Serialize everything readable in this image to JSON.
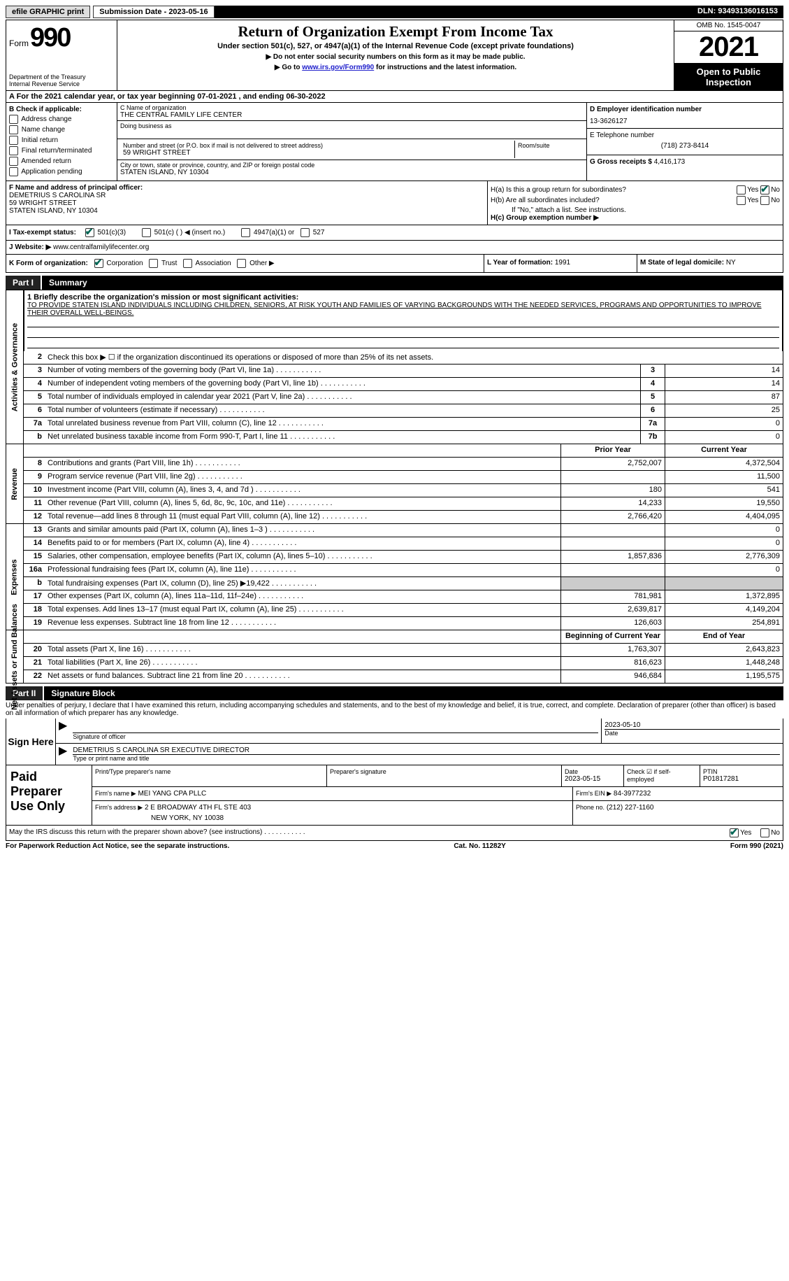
{
  "topbar": {
    "efile": "efile GRAPHIC print",
    "submission_label": "Submission Date - 2023-05-16",
    "dln": "DLN: 93493136016153"
  },
  "header": {
    "form_word": "Form",
    "form_num": "990",
    "title": "Return of Organization Exempt From Income Tax",
    "subtitle": "Under section 501(c), 527, or 4947(a)(1) of the Internal Revenue Code (except private foundations)",
    "instr1": "▶ Do not enter social security numbers on this form as it may be made public.",
    "instr2_pre": "▶ Go to ",
    "instr2_link": "www.irs.gov/Form990",
    "instr2_post": " for instructions and the latest information.",
    "dept": "Department of the Treasury",
    "irs": "Internal Revenue Service",
    "omb": "OMB No. 1545-0047",
    "year": "2021",
    "open": "Open to Public Inspection"
  },
  "rowA": "A For the 2021 calendar year, or tax year beginning 07-01-2021   , and ending 06-30-2022",
  "colB": {
    "title": "B Check if applicable:",
    "opts": [
      "Address change",
      "Name change",
      "Initial return",
      "Final return/terminated",
      "Amended return",
      "Application pending"
    ]
  },
  "colC": {
    "name_label": "C Name of organization",
    "name": "THE CENTRAL FAMILY LIFE CENTER",
    "dba_label": "Doing business as",
    "addr_label": "Number and street (or P.O. box if mail is not delivered to street address)",
    "room_label": "Room/suite",
    "addr": "59 WRIGHT STREET",
    "city_label": "City or town, state or province, country, and ZIP or foreign postal code",
    "city": "STATEN ISLAND, NY  10304"
  },
  "colD": {
    "ein_label": "D Employer identification number",
    "ein": "13-3626127",
    "phone_label": "E Telephone number",
    "phone": "(718) 273-8414",
    "gross_label": "G Gross receipts $",
    "gross": "4,416,173"
  },
  "colF": {
    "label": "F Name and address of principal officer:",
    "name": "DEMETRIUS S CAROLINA SR",
    "addr1": "59 WRIGHT STREET",
    "addr2": "STATEN ISLAND, NY  10304"
  },
  "colH": {
    "ha": "H(a)  Is this a group return for subordinates?",
    "hb": "H(b)  Are all subordinates included?",
    "hb_note": "If \"No,\" attach a list. See instructions.",
    "hc": "H(c)  Group exemption number ▶",
    "yes": "Yes",
    "no": "No"
  },
  "rowI": {
    "label": "I  Tax-exempt status:",
    "o1": "501(c)(3)",
    "o2": "501(c) (  ) ◀ (insert no.)",
    "o3": "4947(a)(1) or",
    "o4": "527"
  },
  "rowJ": {
    "label": "J  Website: ▶",
    "value": "www.centralfamilylifecenter.org"
  },
  "rowK": {
    "label": "K Form of organization:",
    "o1": "Corporation",
    "o2": "Trust",
    "o3": "Association",
    "o4": "Other ▶",
    "l_label": "L Year of formation:",
    "l_val": "1991",
    "m_label": "M State of legal domicile:",
    "m_val": "NY"
  },
  "part1": {
    "label": "Part I",
    "title": "Summary"
  },
  "tabs": {
    "ag": "Activities & Governance",
    "rev": "Revenue",
    "exp": "Expenses",
    "na": "Net Assets or Fund Balances"
  },
  "mission": {
    "q": "1   Briefly describe the organization's mission or most significant activities:",
    "text": "TO PROVIDE STATEN ISLAND INDIVIDUALS INCLUDING CHILDREN, SENIORS, AT RISK YOUTH AND FAMILIES OF VARYING BACKGROUNDS WITH THE NEEDED SERVICES, PROGRAMS AND OPPORTUNITIES TO IMPROVE THEIR OVERALL WELL-BEINGS."
  },
  "lines_gov": [
    {
      "n": "2",
      "d": "Check this box ▶ ☐ if the organization discontinued its operations or disposed of more than 25% of its net assets.",
      "box": "",
      "val": ""
    },
    {
      "n": "3",
      "d": "Number of voting members of the governing body (Part VI, line 1a)",
      "box": "3",
      "val": "14"
    },
    {
      "n": "4",
      "d": "Number of independent voting members of the governing body (Part VI, line 1b)",
      "box": "4",
      "val": "14"
    },
    {
      "n": "5",
      "d": "Total number of individuals employed in calendar year 2021 (Part V, line 2a)",
      "box": "5",
      "val": "87"
    },
    {
      "n": "6",
      "d": "Total number of volunteers (estimate if necessary)",
      "box": "6",
      "val": "25"
    },
    {
      "n": "7a",
      "d": "Total unrelated business revenue from Part VIII, column (C), line 12",
      "box": "7a",
      "val": "0"
    },
    {
      "n": "b",
      "d": "Net unrelated business taxable income from Form 990-T, Part I, line 11",
      "box": "7b",
      "val": "0"
    }
  ],
  "col_headers": {
    "prior": "Prior Year",
    "current": "Current Year"
  },
  "lines_rev": [
    {
      "n": "8",
      "d": "Contributions and grants (Part VIII, line 1h)",
      "p": "2,752,007",
      "c": "4,372,504"
    },
    {
      "n": "9",
      "d": "Program service revenue (Part VIII, line 2g)",
      "p": "",
      "c": "11,500"
    },
    {
      "n": "10",
      "d": "Investment income (Part VIII, column (A), lines 3, 4, and 7d )",
      "p": "180",
      "c": "541"
    },
    {
      "n": "11",
      "d": "Other revenue (Part VIII, column (A), lines 5, 6d, 8c, 9c, 10c, and 11e)",
      "p": "14,233",
      "c": "19,550"
    },
    {
      "n": "12",
      "d": "Total revenue—add lines 8 through 11 (must equal Part VIII, column (A), line 12)",
      "p": "2,766,420",
      "c": "4,404,095"
    }
  ],
  "lines_exp": [
    {
      "n": "13",
      "d": "Grants and similar amounts paid (Part IX, column (A), lines 1–3 )",
      "p": "",
      "c": "0"
    },
    {
      "n": "14",
      "d": "Benefits paid to or for members (Part IX, column (A), line 4)",
      "p": "",
      "c": "0"
    },
    {
      "n": "15",
      "d": "Salaries, other compensation, employee benefits (Part IX, column (A), lines 5–10)",
      "p": "1,857,836",
      "c": "2,776,309"
    },
    {
      "n": "16a",
      "d": "Professional fundraising fees (Part IX, column (A), line 11e)",
      "p": "",
      "c": "0"
    },
    {
      "n": "b",
      "d": "Total fundraising expenses (Part IX, column (D), line 25) ▶19,422",
      "p": "shaded",
      "c": "shaded"
    },
    {
      "n": "17",
      "d": "Other expenses (Part IX, column (A), lines 11a–11d, 11f–24e)",
      "p": "781,981",
      "c": "1,372,895"
    },
    {
      "n": "18",
      "d": "Total expenses. Add lines 13–17 (must equal Part IX, column (A), line 25)",
      "p": "2,639,817",
      "c": "4,149,204"
    },
    {
      "n": "19",
      "d": "Revenue less expenses. Subtract line 18 from line 12",
      "p": "126,603",
      "c": "254,891"
    }
  ],
  "col_headers2": {
    "begin": "Beginning of Current Year",
    "end": "End of Year"
  },
  "lines_na": [
    {
      "n": "20",
      "d": "Total assets (Part X, line 16)",
      "p": "1,763,307",
      "c": "2,643,823"
    },
    {
      "n": "21",
      "d": "Total liabilities (Part X, line 26)",
      "p": "816,623",
      "c": "1,448,248"
    },
    {
      "n": "22",
      "d": "Net assets or fund balances. Subtract line 21 from line 20",
      "p": "946,684",
      "c": "1,195,575"
    }
  ],
  "part2": {
    "label": "Part II",
    "title": "Signature Block"
  },
  "penalties": "Under penalties of perjury, I declare that I have examined this return, including accompanying schedules and statements, and to the best of my knowledge and belief, it is true, correct, and complete. Declaration of preparer (other than officer) is based on all information of which preparer has any knowledge.",
  "sign": {
    "here": "Sign Here",
    "sig_label": "Signature of officer",
    "date": "2023-05-10",
    "date_label": "Date",
    "name": "DEMETRIUS S CAROLINA SR  EXECUTIVE DIRECTOR",
    "name_label": "Type or print name and title"
  },
  "paid": {
    "title": "Paid Preparer Use Only",
    "p1": "Print/Type preparer's name",
    "p2": "Preparer's signature",
    "p3_label": "Date",
    "p3": "2023-05-15",
    "p4_label": "Check ☑ if self-employed",
    "p5_label": "PTIN",
    "p5": "P01817281",
    "firm_label": "Firm's name   ▶",
    "firm": "MEI YANG CPA PLLC",
    "ein_label": "Firm's EIN ▶",
    "ein": "84-3977232",
    "addr_label": "Firm's address ▶",
    "addr": "2 E BROADWAY 4TH FL STE 403",
    "addr2": "NEW YORK, NY  10038",
    "phone_label": "Phone no.",
    "phone": "(212) 227-1160"
  },
  "discuss": {
    "q": "May the IRS discuss this return with the preparer shown above? (see instructions)",
    "yes": "Yes",
    "no": "No"
  },
  "footer": {
    "left": "For Paperwork Reduction Act Notice, see the separate instructions.",
    "mid": "Cat. No. 11282Y",
    "right": "Form 990 (2021)"
  }
}
